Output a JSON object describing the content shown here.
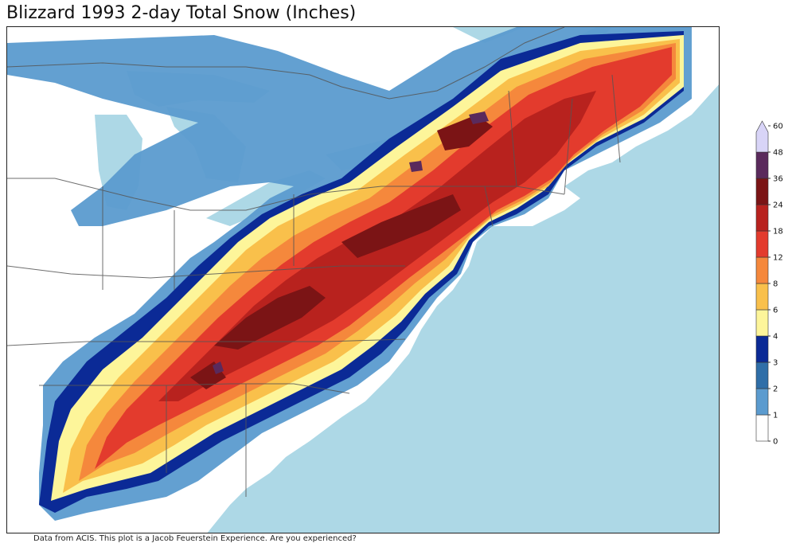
{
  "title": "Blizzard 1993 2-day Total Snow (Inches)",
  "footer": "Data from ACIS. This plot is a Jacob Feuerstein Experience. Are you experienced?",
  "colorbar": {
    "levels": [
      "0",
      "1",
      "2",
      "3",
      "4",
      "6",
      "8",
      "12",
      "18",
      "24",
      "36",
      "48",
      "60"
    ],
    "colors": [
      "#ffffff",
      "#5b9bcf",
      "#2f6ea8",
      "#0b2a96",
      "#fdf59a",
      "#f9c04b",
      "#f5883c",
      "#e33b2d",
      "#b8221e",
      "#7b1415",
      "#5a2a5c",
      "#d8d4f7"
    ],
    "extend": "max"
  },
  "map_colors": {
    "ocean": "#add8e6",
    "land": "#ffffff",
    "boundaries": "#555555"
  }
}
